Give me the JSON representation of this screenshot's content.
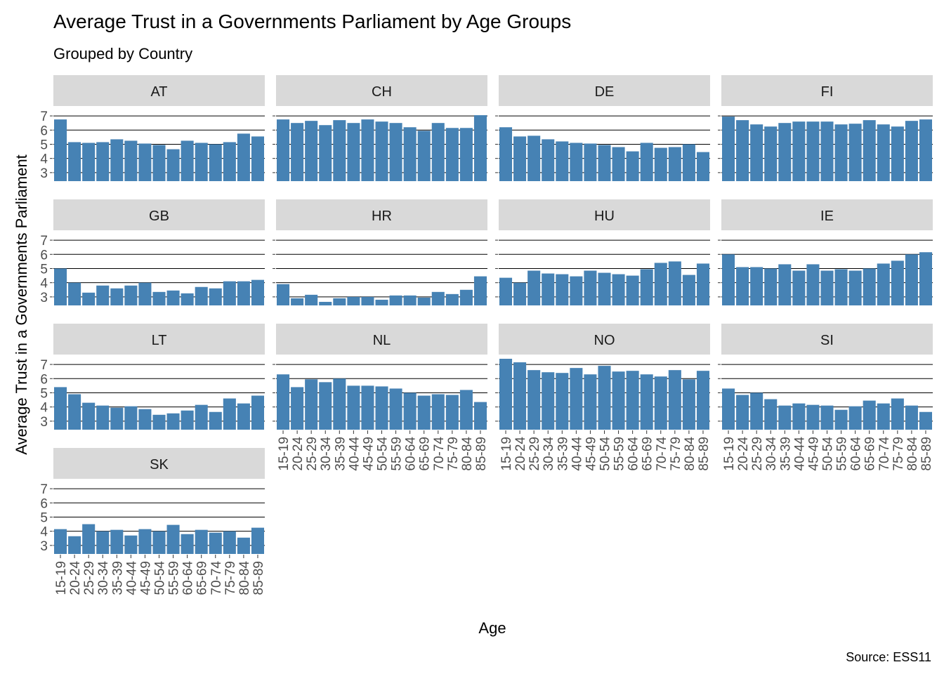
{
  "chart_data": {
    "type": "bar",
    "layout": "facet_wrap",
    "title": "Average Trust in a Governments Parliament by Age Groups",
    "subtitle": "Grouped by Country",
    "xlabel": "Age",
    "ylabel": "Average Trust in a Governments Parliament",
    "caption": "Source: ESS11",
    "ylim": [
      2.4,
      7.4
    ],
    "yticks": [
      3,
      4,
      5,
      6,
      7
    ],
    "grid": "horizontal major",
    "bar_color": "#4682B4",
    "strip_color": "#D9D9D9",
    "categories": [
      "15-19",
      "20-24",
      "25-29",
      "30-34",
      "35-39",
      "40-44",
      "45-49",
      "50-54",
      "55-59",
      "60-64",
      "65-69",
      "70-74",
      "75-79",
      "80-84",
      "85-89"
    ],
    "panels": [
      {
        "name": "AT",
        "values": [
          6.75,
          5.15,
          5.1,
          5.15,
          5.35,
          5.25,
          5.05,
          4.95,
          4.65,
          5.25,
          5.1,
          5.0,
          5.15,
          5.75,
          5.55
        ]
      },
      {
        "name": "CH",
        "values": [
          6.75,
          6.5,
          6.65,
          6.35,
          6.7,
          6.5,
          6.75,
          6.6,
          6.5,
          6.2,
          5.95,
          6.5,
          6.15,
          6.15,
          7.05
        ]
      },
      {
        "name": "DE",
        "values": [
          6.2,
          5.55,
          5.6,
          5.35,
          5.2,
          5.1,
          5.05,
          4.95,
          4.8,
          4.5,
          5.1,
          4.75,
          4.8,
          5.0,
          4.45
        ]
      },
      {
        "name": "FI",
        "values": [
          6.95,
          6.7,
          6.4,
          6.25,
          6.5,
          6.6,
          6.6,
          6.6,
          6.4,
          6.45,
          6.7,
          6.4,
          6.25,
          6.65,
          6.75
        ]
      },
      {
        "name": "GB",
        "values": [
          5.0,
          4.0,
          3.3,
          3.8,
          3.6,
          3.8,
          4.0,
          3.35,
          3.45,
          3.25,
          3.7,
          3.6,
          4.1,
          4.1,
          4.2
        ]
      },
      {
        "name": "HR",
        "values": [
          3.9,
          2.9,
          3.15,
          2.65,
          2.9,
          3.0,
          3.0,
          2.8,
          3.1,
          3.1,
          2.95,
          3.35,
          3.2,
          3.5,
          4.45
        ]
      },
      {
        "name": "HU",
        "values": [
          4.35,
          4.0,
          4.85,
          4.65,
          4.6,
          4.45,
          4.85,
          4.7,
          4.6,
          4.5,
          4.95,
          5.4,
          5.5,
          4.55,
          5.35
        ]
      },
      {
        "name": "IE",
        "values": [
          6.0,
          5.1,
          5.1,
          5.0,
          5.3,
          4.85,
          5.3,
          4.85,
          4.95,
          4.85,
          5.0,
          5.35,
          5.55,
          6.0,
          6.15
        ]
      },
      {
        "name": "LT",
        "values": [
          5.4,
          4.9,
          4.3,
          4.1,
          3.95,
          4.05,
          3.85,
          3.45,
          3.55,
          3.75,
          4.15,
          3.65,
          4.6,
          4.25,
          4.8
        ]
      },
      {
        "name": "NL",
        "values": [
          6.3,
          5.4,
          5.95,
          5.75,
          6.0,
          5.5,
          5.5,
          5.45,
          5.3,
          5.0,
          4.8,
          4.9,
          4.85,
          5.2,
          4.35
        ]
      },
      {
        "name": "NO",
        "values": [
          7.4,
          7.15,
          6.6,
          6.45,
          6.4,
          6.75,
          6.3,
          6.9,
          6.5,
          6.55,
          6.3,
          6.15,
          6.6,
          5.95,
          6.55
        ]
      },
      {
        "name": "SI",
        "values": [
          5.3,
          4.85,
          5.0,
          4.55,
          4.1,
          4.25,
          4.15,
          4.1,
          3.8,
          4.05,
          4.45,
          4.25,
          4.6,
          4.1,
          3.65
        ]
      },
      {
        "name": "SK",
        "values": [
          4.15,
          3.65,
          4.5,
          4.0,
          4.1,
          3.7,
          4.15,
          4.0,
          4.45,
          3.8,
          4.1,
          3.9,
          4.0,
          3.55,
          4.25
        ]
      }
    ]
  }
}
